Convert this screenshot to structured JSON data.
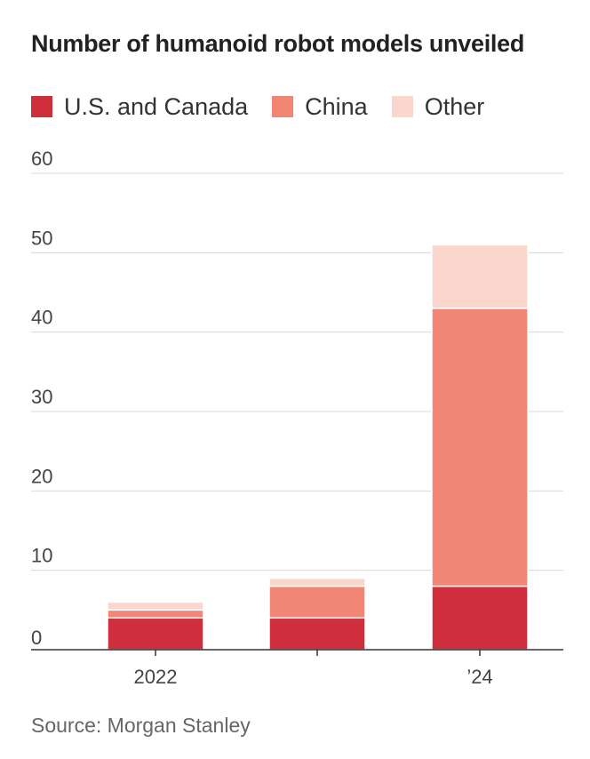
{
  "chart_data": {
    "type": "bar",
    "stacked": true,
    "title": "Number of humanoid robot models unveiled",
    "categories": [
      "2022",
      "",
      "’24"
    ],
    "series": [
      {
        "name": "U.S. and Canada",
        "color": "#cf2e3d",
        "values": [
          4,
          4,
          8
        ]
      },
      {
        "name": "China",
        "color": "#f28674",
        "values": [
          1,
          4,
          35
        ]
      },
      {
        "name": "Other",
        "color": "#fbd6cc",
        "values": [
          1,
          1,
          8
        ]
      }
    ],
    "xlabel": "",
    "ylabel": "",
    "ylim": [
      0,
      60
    ],
    "yticks": [
      0,
      10,
      20,
      30,
      40,
      50,
      60
    ],
    "ytick_labels": [
      "0",
      "10",
      "20",
      "30",
      "40",
      "50",
      "60"
    ],
    "grid": true,
    "legend": "top-left",
    "source": "Source: Morgan Stanley"
  }
}
